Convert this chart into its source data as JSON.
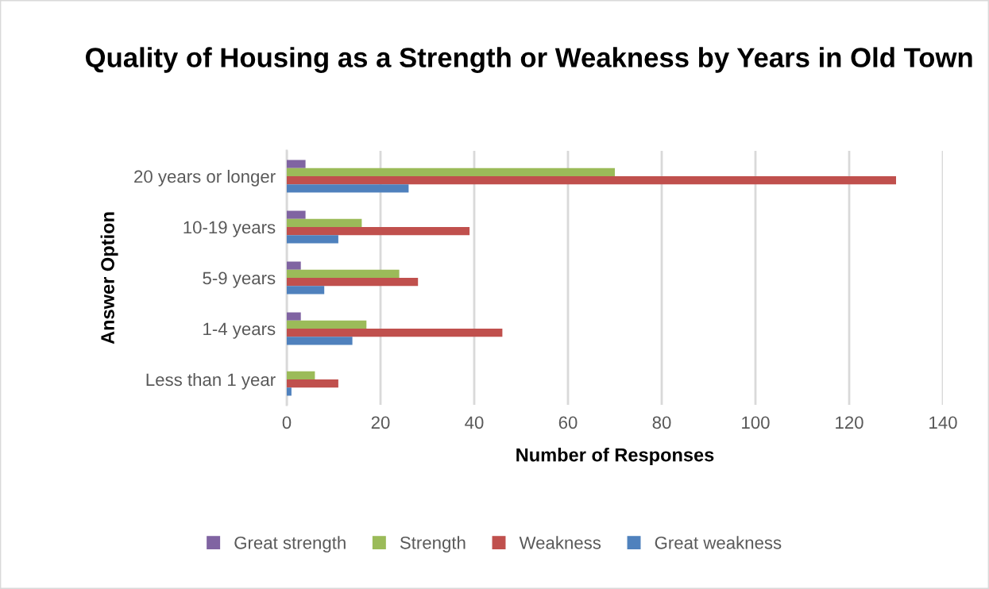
{
  "chart_data": {
    "type": "bar",
    "orientation": "horizontal",
    "title": "Quality of Housing as a Strength or Weakness by Years in Old Town",
    "xlabel": "Number of Responses",
    "ylabel": "Answer Option",
    "categories": [
      "20 years or longer",
      "10-19 years",
      "5-9 years",
      "1-4 years",
      "Less than 1 year"
    ],
    "series": [
      {
        "name": "Great strength",
        "color": "#8064a2",
        "values": [
          4,
          4,
          3,
          3,
          0
        ]
      },
      {
        "name": "Strength",
        "color": "#9bbb59",
        "values": [
          70,
          16,
          24,
          17,
          6
        ]
      },
      {
        "name": "Weakness",
        "color": "#c0504d",
        "values": [
          130,
          39,
          28,
          46,
          11
        ]
      },
      {
        "name": "Great weakness",
        "color": "#4f81bd",
        "values": [
          26,
          11,
          8,
          14,
          1
        ]
      }
    ],
    "xlim": [
      0,
      140
    ],
    "xticks": [
      0,
      20,
      40,
      60,
      80,
      100,
      120,
      140
    ],
    "grid": "x",
    "legend": "bottom"
  }
}
